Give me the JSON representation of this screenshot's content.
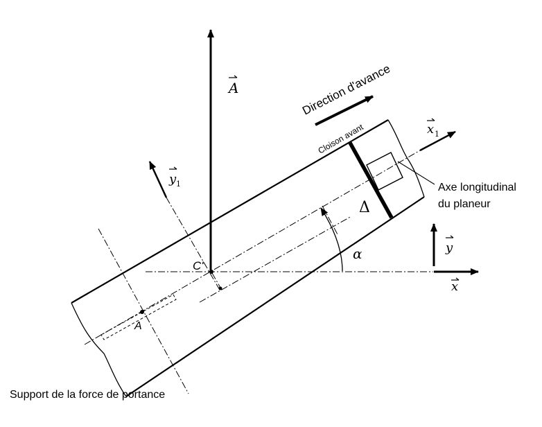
{
  "labels": {
    "force_A": "A",
    "y1": "y",
    "y1_sub": "1",
    "x1": "x",
    "x1_sub": "1",
    "y": "y",
    "x": "x",
    "point_C": "C'",
    "point_A": "A",
    "delta": "Δ",
    "alpha": "α",
    "direction": "Direction d'avance",
    "cloison": "Cloison avant",
    "axe_line1": "Axe longitudinal",
    "axe_line2": "du planeur",
    "support": "Support de la force de portance"
  }
}
